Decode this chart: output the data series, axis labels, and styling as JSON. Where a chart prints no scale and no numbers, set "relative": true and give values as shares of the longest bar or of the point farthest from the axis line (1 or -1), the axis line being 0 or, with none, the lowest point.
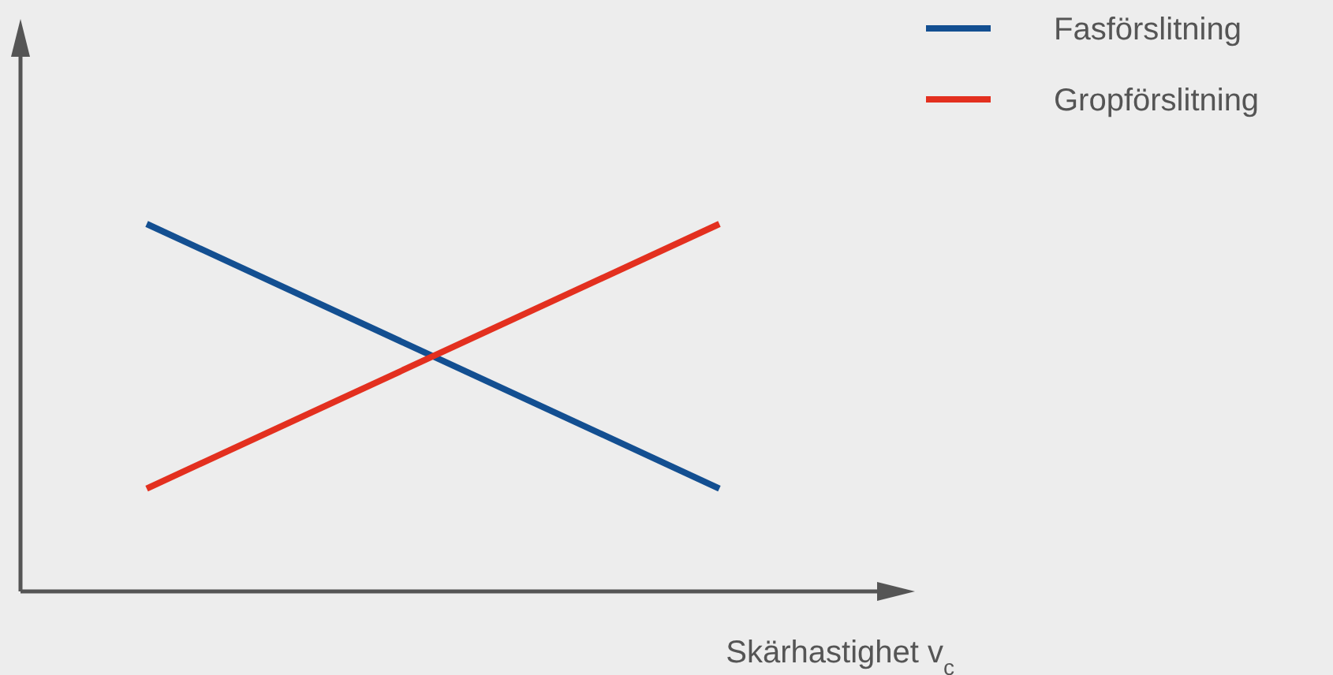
{
  "chart_data": {
    "type": "line",
    "relative": true,
    "xlabel": "Skärhastighet v$_{c}$",
    "categories": [
      null,
      null
    ],
    "legend": "top right",
    "series": [
      {
        "name": "Fasförslitning",
        "color": "#134f91",
        "values": [
          1,
          0.28
        ]
      },
      {
        "name": "Gropförslitning",
        "color": "#e3301f",
        "values": [
          0.28,
          1
        ]
      }
    ]
  }
}
